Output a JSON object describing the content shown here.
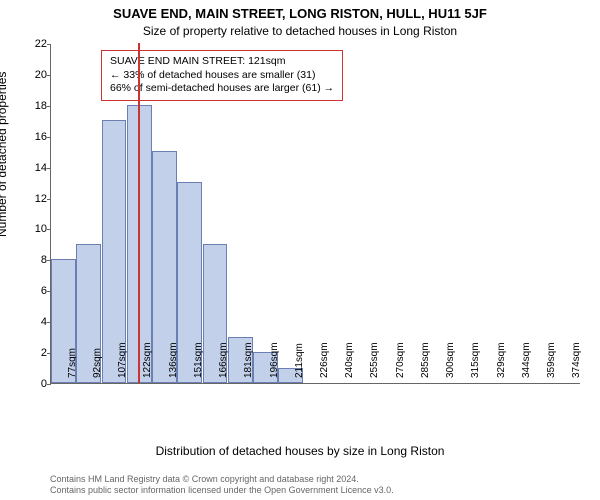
{
  "title": "SUAVE END, MAIN STREET, LONG RISTON, HULL, HU11 5JF",
  "subtitle": "Size of property relative to detached houses in Long Riston",
  "ylabel": "Number of detached properties",
  "xlabel": "Distribution of detached houses by size in Long Riston",
  "chart": {
    "type": "histogram",
    "ylim": [
      0,
      22
    ],
    "ytick_step": 2,
    "bar_border_color": "#6b7fb3",
    "bar_fill_color": "#c3d0ea",
    "refline_color": "#cc3333",
    "refline_x": 121,
    "background_color": "#ffffff",
    "categories": [
      "77sqm",
      "92sqm",
      "107sqm",
      "122sqm",
      "136sqm",
      "151sqm",
      "166sqm",
      "181sqm",
      "196sqm",
      "211sqm",
      "226sqm",
      "240sqm",
      "255sqm",
      "270sqm",
      "285sqm",
      "300sqm",
      "315sqm",
      "329sqm",
      "344sqm",
      "359sqm",
      "374sqm"
    ],
    "xstart": 77,
    "xstep": 14.85,
    "values": [
      8,
      9,
      17,
      18,
      15,
      13,
      9,
      3,
      2,
      1,
      0,
      0,
      0,
      0,
      0,
      0,
      0,
      0,
      0,
      0,
      0
    ]
  },
  "annotation": {
    "line1": "SUAVE END MAIN STREET: 121sqm",
    "line2": "← 33% of detached houses are smaller (31)",
    "line3": "66% of semi-detached houses are larger (61) →"
  },
  "footer": {
    "line1": "Contains HM Land Registry data © Crown copyright and database right 2024.",
    "line2": "Contains public sector information licensed under the Open Government Licence v3.0."
  }
}
